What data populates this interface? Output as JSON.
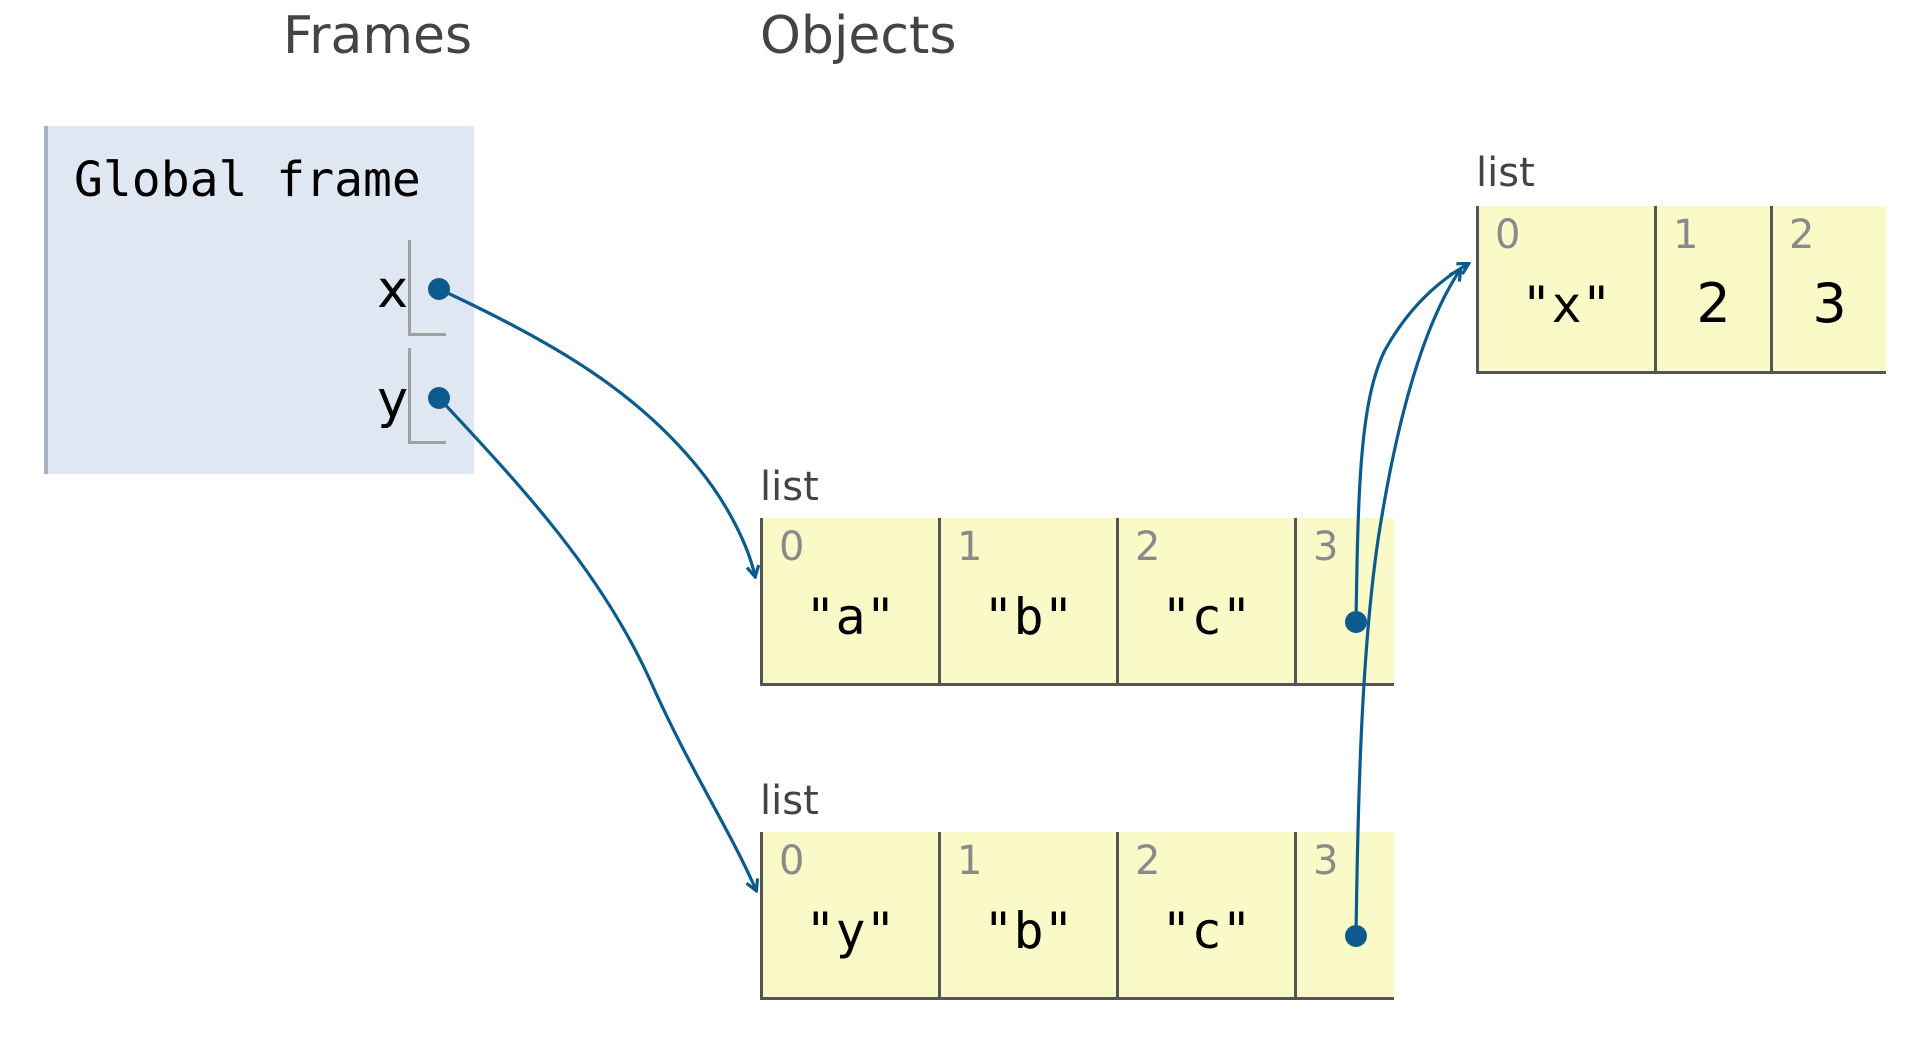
{
  "headers": {
    "frames": "Frames",
    "objects": "Objects"
  },
  "global_frame": {
    "title": "Global frame",
    "variables": [
      {
        "name": "x"
      },
      {
        "name": "y"
      }
    ]
  },
  "objects": {
    "list_x": {
      "label": "list",
      "indices": [
        "0",
        "1",
        "2",
        "3"
      ],
      "values": [
        "\"a\"",
        "\"b\"",
        "\"c\"",
        ""
      ]
    },
    "list_y": {
      "label": "list",
      "indices": [
        "0",
        "1",
        "2",
        "3"
      ],
      "values": [
        "\"y\"",
        "\"b\"",
        "\"c\"",
        ""
      ]
    },
    "list_inner": {
      "label": "list",
      "indices": [
        "0",
        "1",
        "2"
      ],
      "values": [
        "\"x\"",
        "2",
        "3"
      ]
    }
  },
  "colors": {
    "frame_bg": "#dfe7f3",
    "cell_bg": "#fafac8",
    "pointer": "#0c5b8c"
  }
}
